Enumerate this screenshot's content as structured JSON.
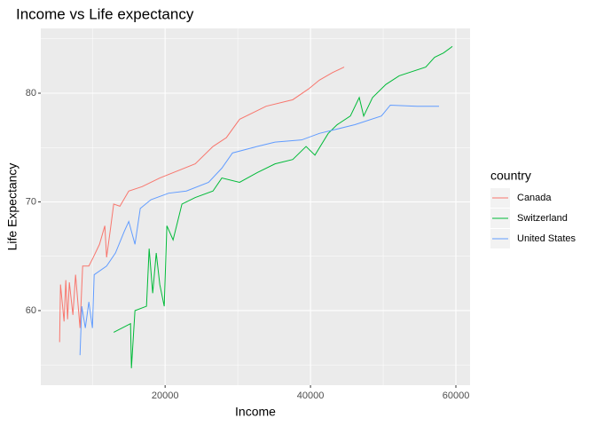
{
  "chart_data": {
    "type": "line",
    "title": "Income vs Life expectancy",
    "x_label": "Income",
    "y_label": "Life Expectancy",
    "legend_title": "country",
    "legend_position": "right",
    "grid": true,
    "xlim": [
      2900,
      61950
    ],
    "ylim": [
      53.14,
      85.96
    ],
    "xticks": [
      20000,
      40000,
      60000
    ],
    "yticks": [
      60,
      70,
      80
    ],
    "series": [
      {
        "name": "Canada",
        "color": "#F8766D",
        "x": [
          5488,
          5610,
          6100,
          6341,
          6585,
          6829,
          7317,
          7683,
          8293,
          8658,
          9512,
          10122,
          10976,
          11707,
          11951,
          12439,
          12927,
          13780,
          15000,
          16829,
          19268,
          24146,
          26585,
          28415,
          30244,
          33902,
          37561,
          39756,
          41220,
          43049,
          44634
        ],
        "values": [
          57.1,
          62.4,
          59.0,
          62.8,
          59.2,
          62.6,
          59.6,
          63.3,
          58.4,
          64.1,
          64.1,
          64.9,
          66.1,
          67.8,
          64.9,
          67.3,
          69.8,
          69.6,
          71.0,
          71.4,
          72.2,
          73.5,
          75.1,
          75.9,
          77.6,
          78.8,
          79.4,
          80.4,
          81.2,
          81.9,
          82.4
        ]
      },
      {
        "name": "Switzerland",
        "color": "#00BA38",
        "x": [
          12927,
          15244,
          15366,
          15854,
          17439,
          17805,
          18293,
          18780,
          19268,
          19878,
          20244,
          21098,
          22317,
          24146,
          26585,
          27805,
          30244,
          32683,
          35122,
          37561,
          39390,
          40610,
          42439,
          43659,
          45488,
          46707,
          47317,
          48537,
          50366,
          52195,
          55854,
          57073,
          58293,
          59512
        ],
        "values": [
          58.0,
          58.8,
          54.7,
          60.0,
          60.4,
          65.7,
          61.6,
          65.3,
          62.4,
          60.4,
          67.8,
          66.5,
          69.8,
          70.4,
          71.0,
          72.2,
          71.8,
          72.7,
          73.5,
          73.9,
          75.1,
          74.3,
          76.3,
          77.1,
          77.9,
          79.6,
          77.9,
          79.6,
          80.8,
          81.6,
          82.4,
          83.3,
          83.7,
          84.3
        ]
      },
      {
        "name": "United States",
        "color": "#619CFF",
        "x": [
          8293,
          8537,
          9024,
          9512,
          10000,
          10244,
          11951,
          13171,
          14390,
          15000,
          15854,
          16585,
          18049,
          20488,
          22927,
          25976,
          27805,
          29268,
          32683,
          35122,
          38780,
          41220,
          46098,
          49756,
          50976,
          54634,
          57683
        ],
        "values": [
          55.9,
          60.4,
          58.4,
          60.8,
          58.4,
          63.3,
          64.1,
          65.3,
          67.3,
          68.2,
          66.1,
          69.4,
          70.2,
          70.8,
          71.0,
          71.8,
          73.1,
          74.5,
          75.1,
          75.5,
          75.7,
          76.3,
          77.1,
          77.9,
          78.9,
          78.8,
          78.8
        ]
      }
    ]
  }
}
